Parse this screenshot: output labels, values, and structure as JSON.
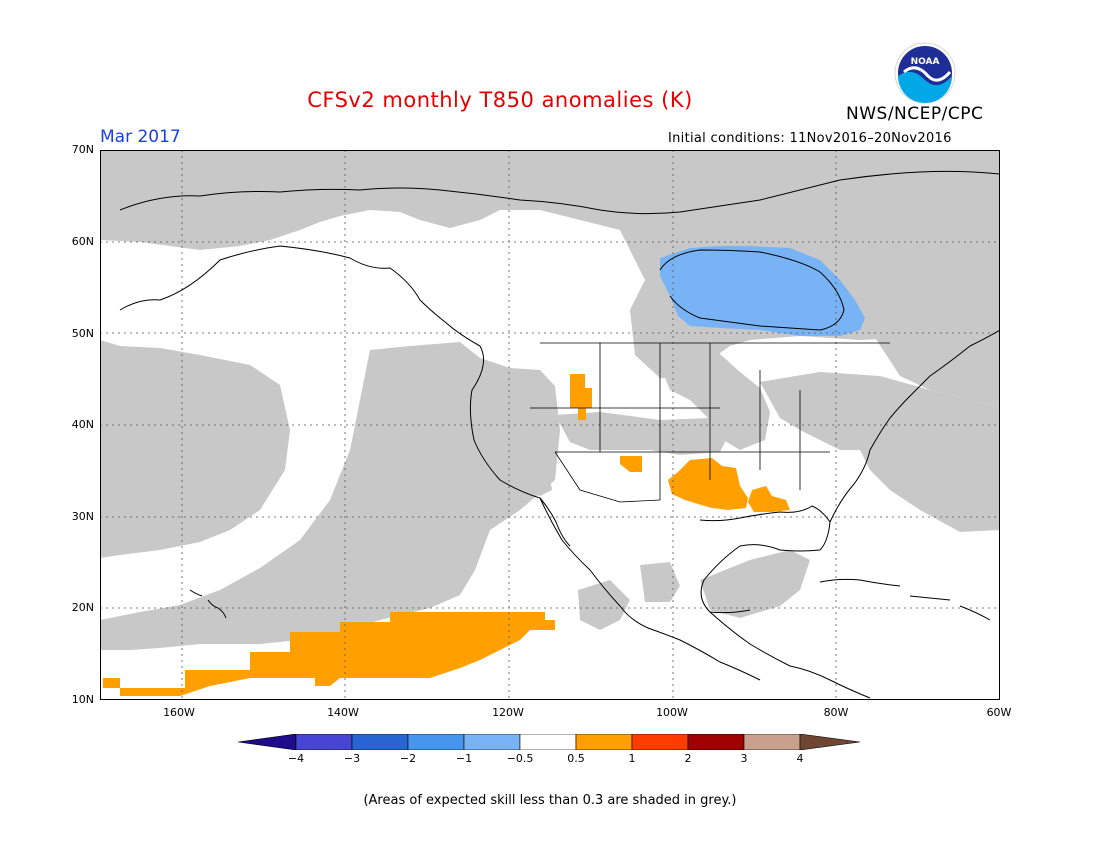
{
  "title": "CFSv2 monthly T850 anomalies (K)",
  "org": "NWS/NCEP/CPC",
  "logo": {
    "icon": "noaa-logo-icon",
    "text": "NOAA"
  },
  "period": "Mar 2017",
  "initial_conditions": "Initial conditions: 11Nov2016–20Nov2016",
  "lat_labels": [
    "70N",
    "60N",
    "50N",
    "40N",
    "30N",
    "20N",
    "10N"
  ],
  "lon_labels": [
    "160W",
    "140W",
    "120W",
    "100W",
    "80W",
    "60W"
  ],
  "colorbar": {
    "labels": [
      "−4",
      "−3",
      "−2",
      "−1",
      "−0.5",
      "0.5",
      "1",
      "2",
      "3",
      "4"
    ],
    "bins": [
      {
        "range": "< -4",
        "color": "#1e0c8c"
      },
      {
        "range": "-4 to -3",
        "color": "#4646d2"
      },
      {
        "range": "-3 to -2",
        "color": "#2864d2"
      },
      {
        "range": "-2 to -1",
        "color": "#4696ee"
      },
      {
        "range": "-1 to -0.5",
        "color": "#78b4f5"
      },
      {
        "range": "-0.5 to 0.5",
        "color": "#ffffff"
      },
      {
        "range": "0.5 to 1",
        "color": "#ffa000"
      },
      {
        "range": "1 to 2",
        "color": "#ff3c00"
      },
      {
        "range": "2 to 3",
        "color": "#a00000"
      },
      {
        "range": "3 to 4",
        "color": "#c8a08c"
      },
      {
        "range": "> 4",
        "color": "#6e4632"
      }
    ]
  },
  "low_skill_shade": "#c8c8c8",
  "note": "(Areas of expected skill less than 0.3 are shaded in grey.)",
  "map": {
    "lon_range": [
      -170,
      -60
    ],
    "lat_range": [
      10,
      70
    ],
    "grid": "dotted every 10 degrees"
  }
}
